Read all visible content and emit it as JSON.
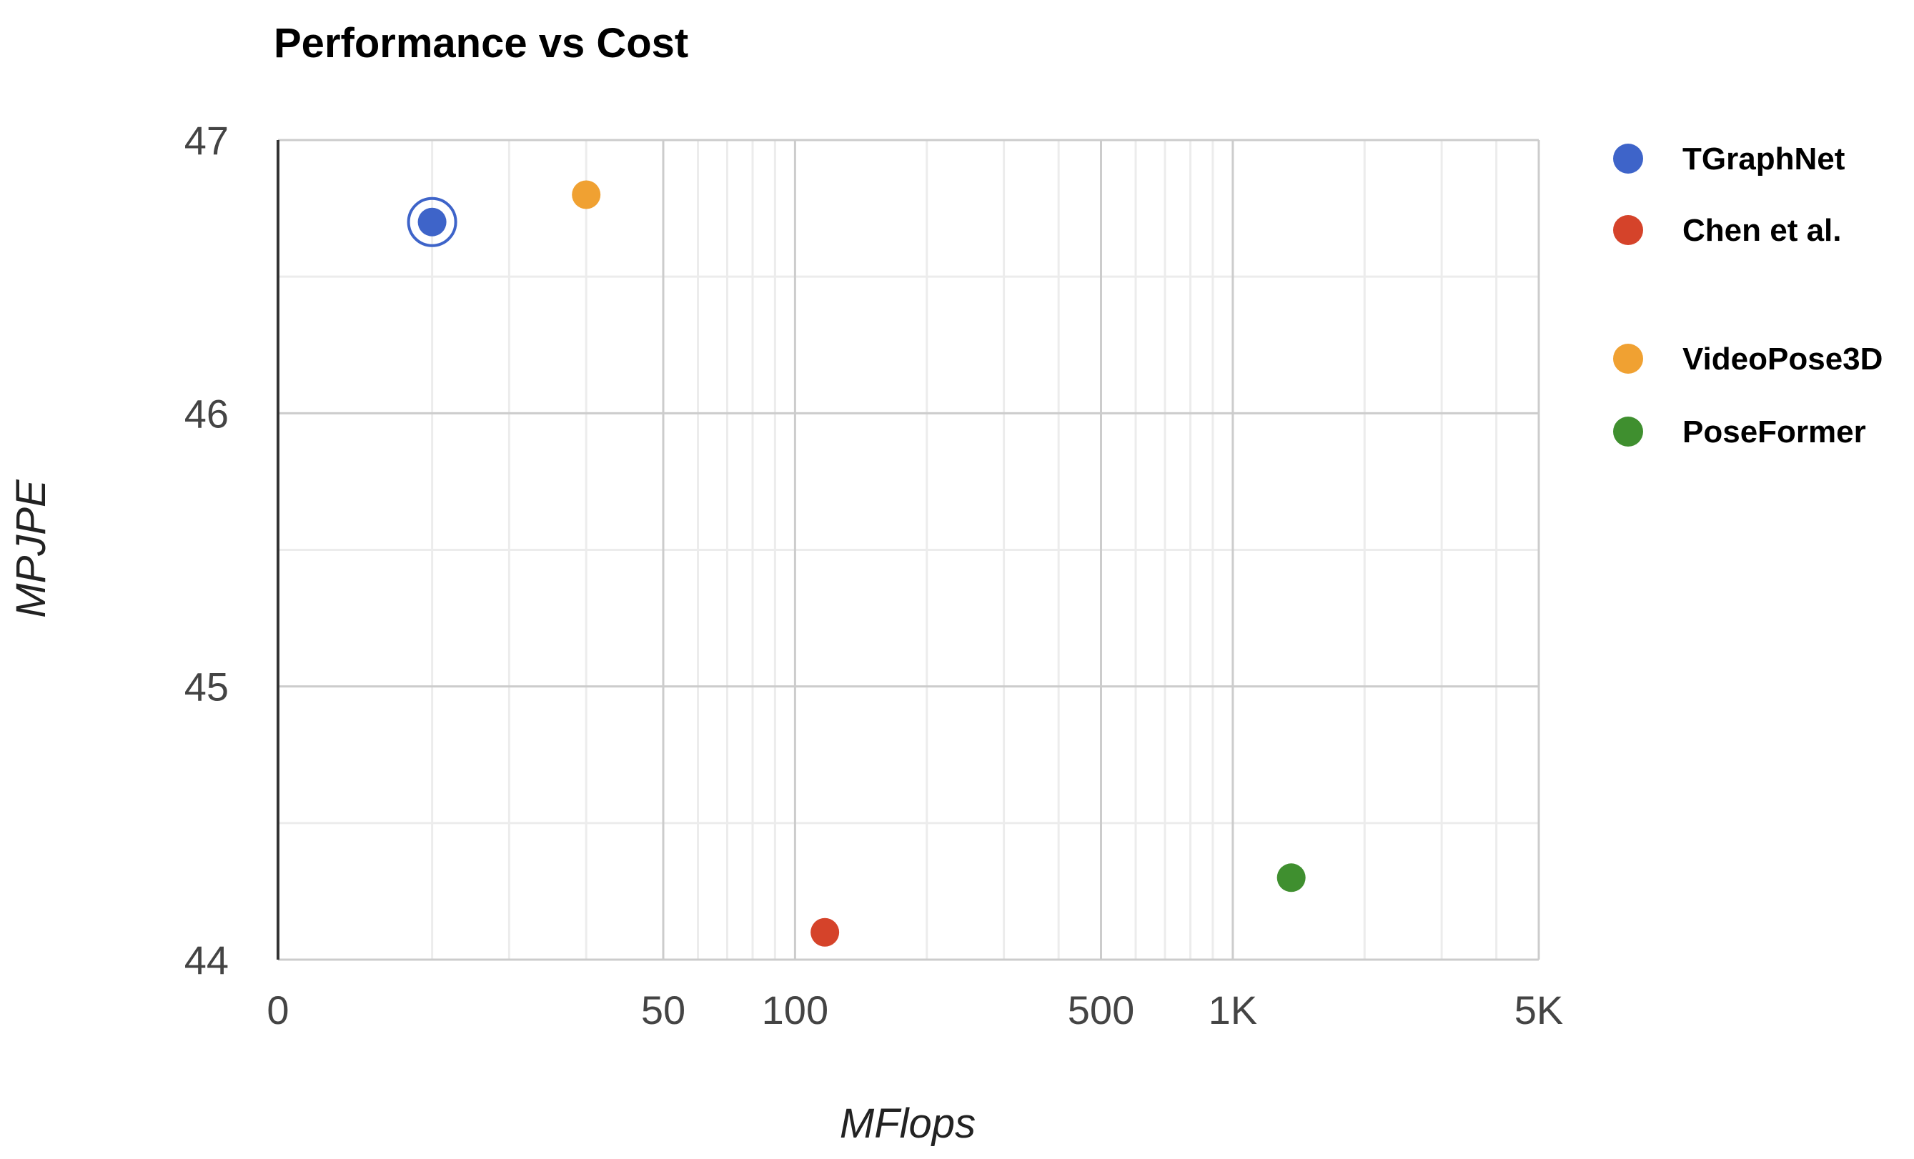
{
  "chart_data": {
    "type": "scatter",
    "title": "Performance vs Cost",
    "xlabel": "MFlops",
    "ylabel": "MPJPE",
    "x_scale": "log",
    "xlim": [
      0,
      5000
    ],
    "ylim": [
      44,
      47
    ],
    "x_ticks": [
      {
        "value": 0,
        "label": "0"
      },
      {
        "value": 50,
        "label": "50"
      },
      {
        "value": 100,
        "label": "100"
      },
      {
        "value": 500,
        "label": "500"
      },
      {
        "value": 1000,
        "label": "1K"
      },
      {
        "value": 5000,
        "label": "5K"
      }
    ],
    "y_ticks": [
      {
        "value": 47,
        "label": "47"
      },
      {
        "value": 46,
        "label": "46"
      },
      {
        "value": 45,
        "label": "45"
      },
      {
        "value": 44,
        "label": "44"
      }
    ],
    "grid": true,
    "legend_position": "right",
    "series": [
      {
        "name": "TGraphNet",
        "color": "#3e64c9",
        "highlighted": true,
        "points": [
          {
            "x": 20,
            "y": 46.7
          }
        ]
      },
      {
        "name": "Chen et al.",
        "color": "#d5432a",
        "points": [
          {
            "x": 117,
            "y": 44.1
          }
        ]
      },
      {
        "name": "VideoPose3D",
        "color": "#f0a132",
        "points": [
          {
            "x": 40,
            "y": 46.8
          }
        ]
      },
      {
        "name": "PoseFormer",
        "color": "#3f8f2f",
        "points": [
          {
            "x": 1360,
            "y": 44.3
          }
        ]
      }
    ]
  }
}
